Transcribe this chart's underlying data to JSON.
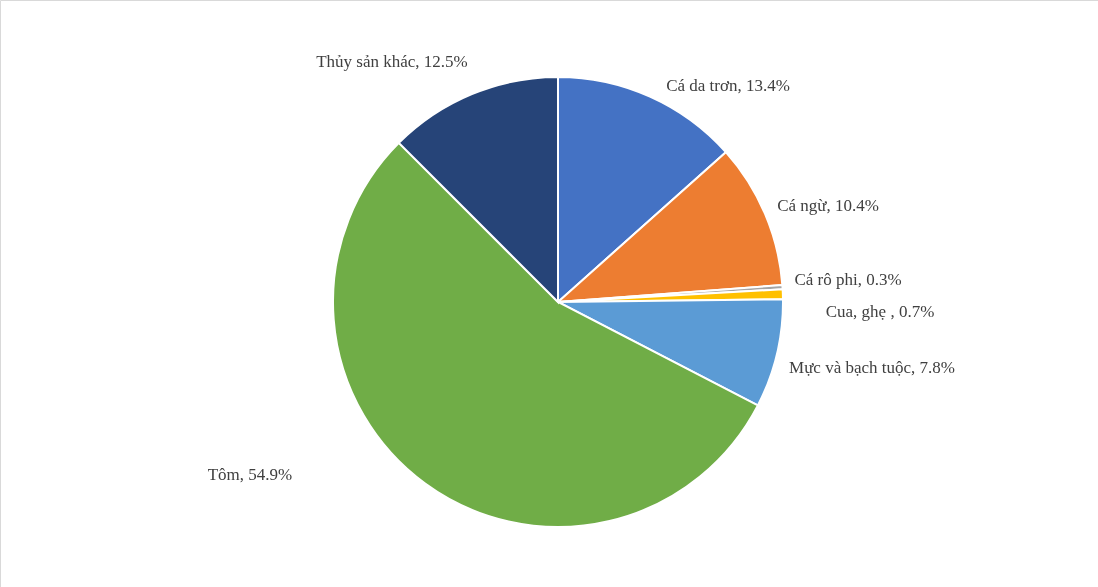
{
  "chart_data": {
    "type": "pie",
    "categories": [
      "Cá da trơn",
      "Cá ngừ",
      "Cá rô phi",
      "Cua, ghẹ ",
      "Mực và bạch tuộc",
      "Tôm",
      "Thủy sản khác"
    ],
    "values": [
      13.4,
      10.4,
      0.3,
      0.7,
      7.8,
      54.9,
      12.5
    ],
    "colors": [
      "#4472c4",
      "#ed7d31",
      "#a5a5a5",
      "#ffc000",
      "#5b9bd5",
      "#70ad47",
      "#264478"
    ],
    "value_labels": [
      "13.4%",
      "10.4%",
      "0.3%",
      "0.7%",
      "7.8%",
      "54.9%",
      "12.5%"
    ]
  }
}
